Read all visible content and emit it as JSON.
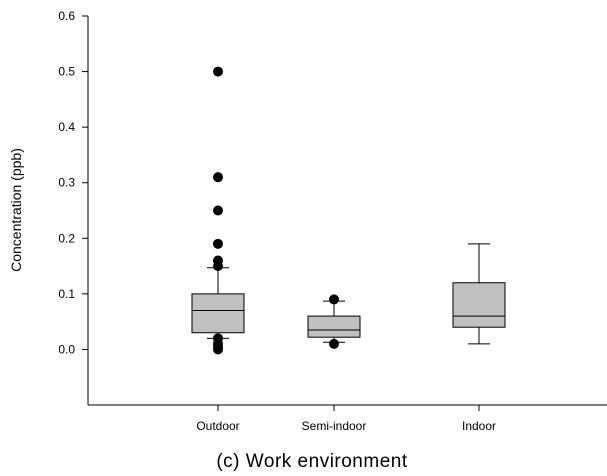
{
  "chart_data": {
    "type": "box",
    "title": "",
    "caption": "(c) Work environment",
    "xlabel": "",
    "ylabel": "Concentration (ppb)",
    "ylim": [
      -0.1,
      0.6
    ],
    "yticks": [
      "0.0",
      "0.1",
      "0.2",
      "0.3",
      "0.4",
      "0.5",
      "0.6"
    ],
    "grid": false,
    "box_color": "#c0c0c0",
    "categories": [
      "Outdoor",
      "Semi-indoor",
      "Indoor"
    ],
    "boxes": [
      {
        "category": "Outdoor",
        "whisker_low": 0.02,
        "q1": 0.03,
        "median": 0.07,
        "q3": 0.1,
        "whisker_high": 0.147,
        "outliers": [
          0.5,
          0.31,
          0.25,
          0.19,
          0.16,
          0.15,
          0.02,
          0.01,
          0.005,
          0.0
        ]
      },
      {
        "category": "Semi-indoor",
        "whisker_low": 0.013,
        "q1": 0.022,
        "median": 0.035,
        "q3": 0.06,
        "whisker_high": 0.087,
        "outliers": [
          0.09,
          0.01
        ]
      },
      {
        "category": "Indoor",
        "whisker_low": 0.01,
        "q1": 0.04,
        "median": 0.06,
        "q3": 0.12,
        "whisker_high": 0.19,
        "outliers": []
      }
    ]
  }
}
